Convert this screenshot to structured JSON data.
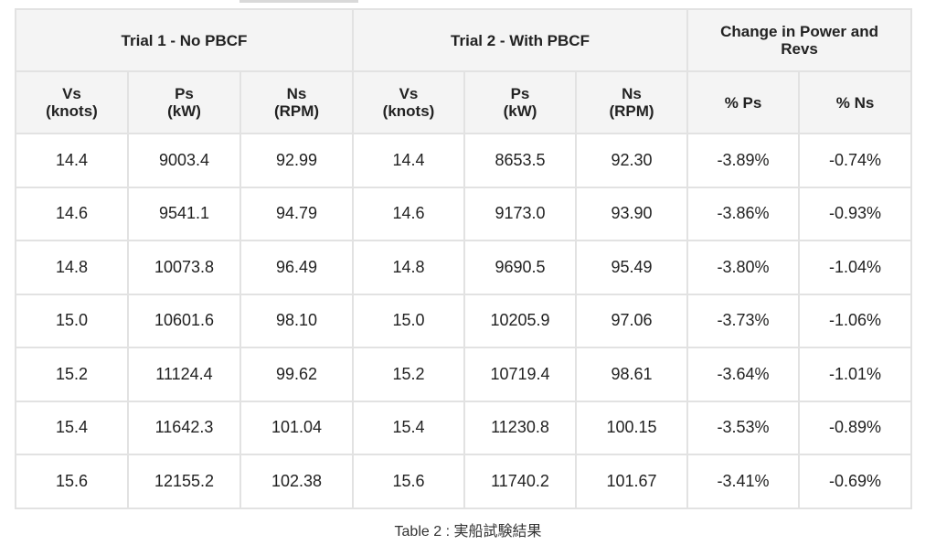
{
  "table": {
    "group_headers": [
      "Trial 1 - No PBCF",
      "Trial 2 - With PBCF",
      "Change in Power and Revs"
    ],
    "sub_headers": [
      [
        "Vs",
        "(knots)"
      ],
      [
        "Ps",
        "(kW)"
      ],
      [
        "Ns",
        "(RPM)"
      ],
      [
        "Vs",
        "(knots)"
      ],
      [
        "Ps",
        "(kW)"
      ],
      [
        "Ns",
        "(RPM)"
      ],
      [
        "% Ps"
      ],
      [
        "% Ns"
      ]
    ],
    "rows": [
      [
        "14.4",
        "9003.4",
        "92.99",
        "14.4",
        "8653.5",
        "92.30",
        "-3.89%",
        "-0.74%"
      ],
      [
        "14.6",
        "9541.1",
        "94.79",
        "14.6",
        "9173.0",
        "93.90",
        "-3.86%",
        "-0.93%"
      ],
      [
        "14.8",
        "10073.8",
        "96.49",
        "14.8",
        "9690.5",
        "95.49",
        "-3.80%",
        "-1.04%"
      ],
      [
        "15.0",
        "10601.6",
        "98.10",
        "15.0",
        "10205.9",
        "97.06",
        "-3.73%",
        "-1.06%"
      ],
      [
        "15.2",
        "11124.4",
        "99.62",
        "15.2",
        "10719.4",
        "98.61",
        "-3.64%",
        "-1.01%"
      ],
      [
        "15.4",
        "11642.3",
        "101.04",
        "15.4",
        "11230.8",
        "100.15",
        "-3.53%",
        "-0.89%"
      ],
      [
        "15.6",
        "12155.2",
        "102.38",
        "15.6",
        "11740.2",
        "101.67",
        "-3.41%",
        "-0.69%"
      ]
    ]
  },
  "caption": "Table 2 : 実船試験結果",
  "colors": {
    "header_bg": "#f4f4f4",
    "border": "#e2e2e2",
    "text": "#222222"
  }
}
